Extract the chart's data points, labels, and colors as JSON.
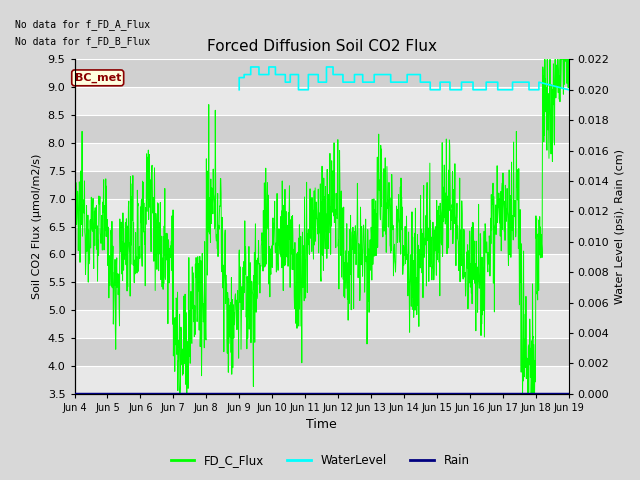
{
  "title": "Forced Diffusion Soil CO2 Flux",
  "xlabel": "Time",
  "ylabel_left": "Soil CO2 Flux (μmol/m2/s)",
  "ylabel_right": "Water Level (psi), Rain (cm)",
  "no_data_text1": "No data for f_FD_A_Flux",
  "no_data_text2": "No data for f_FD_B_Flux",
  "bc_met_label": "BC_met",
  "ylim_left": [
    3.5,
    9.5
  ],
  "ylim_right": [
    0.0,
    0.022
  ],
  "fig_bg_color": "#d8d8d8",
  "plot_bg_color": "#e8e8e8",
  "band_light": "#e8e8e8",
  "band_dark": "#d0d0d0",
  "grid_color": "white",
  "fd_c_flux_color": "#00ff00",
  "water_level_color": "cyan",
  "rain_color": "navy",
  "legend_labels": [
    "FD_C_Flux",
    "WaterLevel",
    "Rain"
  ],
  "xtick_labels": [
    "Jun 4",
    "Jun 5",
    "Jun 6",
    "Jun 7",
    "Jun 8",
    "Jun 9",
    "Jun 10",
    "Jun 11",
    "Jun 12",
    "Jun 13",
    "Jun 14",
    "Jun 15",
    "Jun 16",
    "Jun 17",
    "Jun 18",
    "Jun 19"
  ],
  "yticks_left": [
    3.5,
    4.0,
    4.5,
    5.0,
    5.5,
    6.0,
    6.5,
    7.0,
    7.5,
    8.0,
    8.5,
    9.0,
    9.5
  ],
  "yticks_right": [
    0.0,
    0.002,
    0.004,
    0.006,
    0.008,
    0.01,
    0.012,
    0.014,
    0.016,
    0.018,
    0.02,
    0.022
  ],
  "wl_times": [
    5.0,
    5.0,
    5.15,
    5.15,
    5.35,
    5.35,
    5.6,
    5.6,
    5.9,
    5.9,
    6.1,
    6.1,
    6.4,
    6.4,
    6.55,
    6.55,
    6.8,
    6.8,
    7.1,
    7.1,
    7.4,
    7.4,
    7.65,
    7.65,
    7.85,
    7.85,
    8.15,
    8.15,
    8.5,
    8.5,
    8.75,
    8.75,
    9.1,
    9.1,
    9.6,
    9.6,
    10.1,
    10.1,
    10.5,
    10.5,
    10.8,
    10.8,
    11.1,
    11.1,
    11.4,
    11.4,
    11.75,
    11.75,
    12.1,
    12.1,
    12.5,
    12.5,
    12.85,
    12.85,
    13.3,
    13.3,
    13.8,
    13.8,
    14.1,
    14.1,
    15.0
  ],
  "wl_vals": [
    0.02,
    0.0208,
    0.0208,
    0.021,
    0.021,
    0.0215,
    0.0215,
    0.021,
    0.021,
    0.0215,
    0.0215,
    0.021,
    0.021,
    0.0205,
    0.0205,
    0.021,
    0.021,
    0.02,
    0.02,
    0.021,
    0.021,
    0.0205,
    0.0205,
    0.0215,
    0.0215,
    0.021,
    0.021,
    0.0205,
    0.0205,
    0.021,
    0.021,
    0.0205,
    0.0205,
    0.021,
    0.021,
    0.0205,
    0.0205,
    0.021,
    0.021,
    0.0205,
    0.0205,
    0.02,
    0.02,
    0.0205,
    0.0205,
    0.02,
    0.02,
    0.0205,
    0.0205,
    0.02,
    0.02,
    0.0205,
    0.0205,
    0.02,
    0.02,
    0.0205,
    0.0205,
    0.02,
    0.02,
    0.0205,
    0.02
  ]
}
